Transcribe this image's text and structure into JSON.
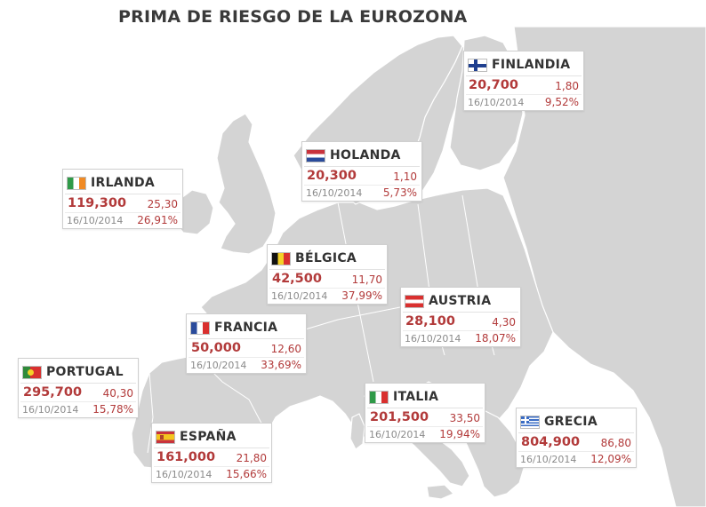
{
  "title": "PRIMA DE RIESGO DE LA EUROZONA",
  "colors": {
    "land": "#d4d4d4",
    "land_outline": "#ffffff",
    "sea": "#ffffff",
    "value_red": "#b23a3a"
  },
  "countries": [
    {
      "id": "finlandia",
      "name": "FINLANDIA",
      "prima": "20,700",
      "variacion": "1,80",
      "fecha": "16/10/2014",
      "porcentaje": "9,52%",
      "flag": "finland-flag-icon"
    },
    {
      "id": "holanda",
      "name": "HOLANDA",
      "prima": "20,300",
      "variacion": "1,10",
      "fecha": "16/10/2014",
      "porcentaje": "5,73%",
      "flag": "netherlands-flag-icon"
    },
    {
      "id": "irlanda",
      "name": "IRLANDA",
      "prima": "119,300",
      "variacion": "25,30",
      "fecha": "16/10/2014",
      "porcentaje": "26,91%",
      "flag": "ireland-flag-icon"
    },
    {
      "id": "belgica",
      "name": "BÉLGICA",
      "prima": "42,500",
      "variacion": "11,70",
      "fecha": "16/10/2014",
      "porcentaje": "37,99%",
      "flag": "belgium-flag-icon"
    },
    {
      "id": "austria",
      "name": "AUSTRIA",
      "prima": "28,100",
      "variacion": "4,30",
      "fecha": "16/10/2014",
      "porcentaje": "18,07%",
      "flag": "austria-flag-icon"
    },
    {
      "id": "francia",
      "name": "FRANCIA",
      "prima": "50,000",
      "variacion": "12,60",
      "fecha": "16/10/2014",
      "porcentaje": "33,69%",
      "flag": "france-flag-icon"
    },
    {
      "id": "portugal",
      "name": "PORTUGAL",
      "prima": "295,700",
      "variacion": "40,30",
      "fecha": "16/10/2014",
      "porcentaje": "15,78%",
      "flag": "portugal-flag-icon"
    },
    {
      "id": "italia",
      "name": "ITALIA",
      "prima": "201,500",
      "variacion": "33,50",
      "fecha": "16/10/2014",
      "porcentaje": "19,94%",
      "flag": "italy-flag-icon"
    },
    {
      "id": "grecia",
      "name": "GRECIA",
      "prima": "804,900",
      "variacion": "86,80",
      "fecha": "16/10/2014",
      "porcentaje": "12,09%",
      "flag": "greece-flag-icon"
    },
    {
      "id": "espana",
      "name": "ESPAÑA",
      "prima": "161,000",
      "variacion": "21,80",
      "fecha": "16/10/2014",
      "porcentaje": "15,66%",
      "flag": "spain-flag-icon"
    }
  ]
}
